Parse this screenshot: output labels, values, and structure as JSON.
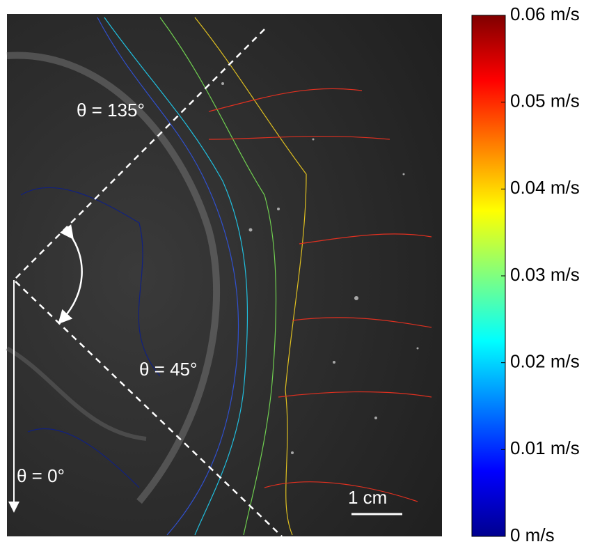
{
  "annotations": {
    "angle_135": "θ = 135°",
    "angle_45": "θ = 45°",
    "angle_0": "θ = 0°",
    "scale_bar": "1 cm"
  },
  "colorbar": {
    "lim": [
      0,
      0.06
    ],
    "ticks": [
      {
        "value": 0,
        "label": "0 m/s"
      },
      {
        "value": 0.01,
        "label": "0.01 m/s"
      },
      {
        "value": 0.02,
        "label": "0.02 m/s"
      },
      {
        "value": 0.03,
        "label": "0.03 m/s"
      },
      {
        "value": 0.04,
        "label": "0.04 m/s"
      },
      {
        "value": 0.05,
        "label": "0.05 m/s"
      },
      {
        "value": 0.06,
        "label": "0.06 m/s"
      }
    ]
  }
}
